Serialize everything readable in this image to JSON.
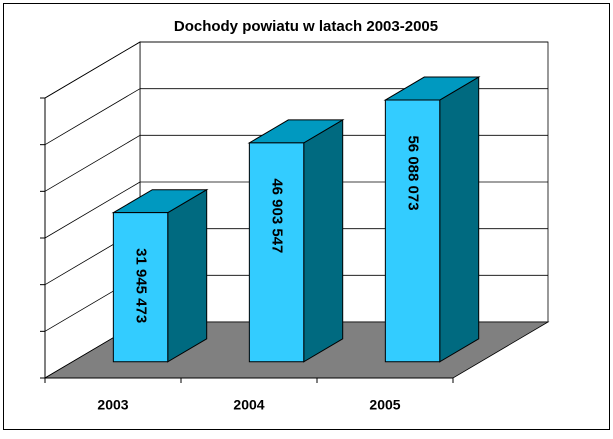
{
  "chart_data": {
    "type": "bar3d",
    "title": "Dochody powiatu w latach 2003-2005",
    "categories": [
      "2003",
      "2004",
      "2005"
    ],
    "values": [
      31945473,
      46903547,
      56088073
    ],
    "value_labels": [
      "31 945 473",
      "46 903 547",
      "56 088 073"
    ],
    "color": "#33ccff",
    "ylim": [
      0,
      60000000
    ],
    "yticks": [
      0,
      10000000,
      20000000,
      30000000,
      40000000,
      50000000,
      60000000
    ],
    "grid": true
  }
}
